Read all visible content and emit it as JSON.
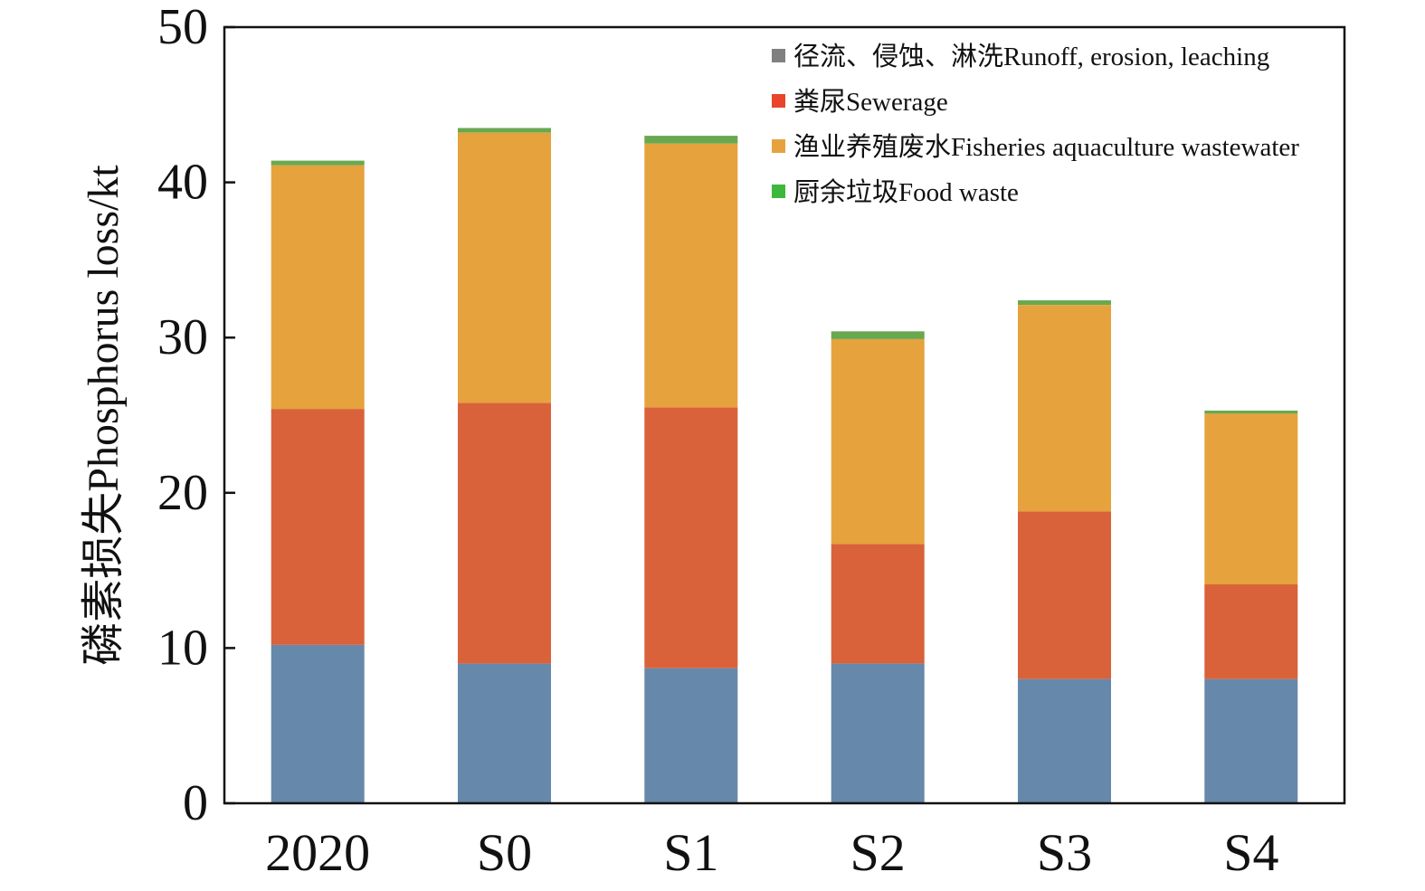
{
  "chart_data": {
    "type": "bar",
    "stacked": true,
    "categories": [
      "2020",
      "S0",
      "S1",
      "S2",
      "S3",
      "S4"
    ],
    "series": [
      {
        "name": "径流、侵蚀、淋洗Runoff, erosion, leaching",
        "color": "#6688aa",
        "legend_color": "#808080",
        "values": [
          10.2,
          9.0,
          8.7,
          9.0,
          8.0,
          8.0
        ]
      },
      {
        "name": "粪尿Sewerage",
        "color": "#d9623a",
        "legend_color": "#e8452c",
        "values": [
          15.2,
          16.8,
          16.8,
          7.7,
          10.8,
          6.1
        ]
      },
      {
        "name": "渔业养殖废水Fisheries aquaculture wastewater",
        "color": "#e6a23c",
        "legend_color": "#e6a23c",
        "values": [
          15.7,
          17.4,
          17.0,
          13.2,
          13.3,
          11.0
        ]
      },
      {
        "name": "厨余垃圾Food waste",
        "color": "#6aa84f",
        "legend_color": "#3cb83c",
        "values": [
          0.3,
          0.3,
          0.5,
          0.5,
          0.3,
          0.2
        ]
      }
    ],
    "xlabel": "",
    "ylabel": "磷素损失Phosphorus loss/kt",
    "ylim": [
      0,
      50
    ],
    "yticks": [
      "0",
      "10",
      "20",
      "30",
      "40",
      "50"
    ],
    "legend_position": "top-right",
    "grid": false
  }
}
